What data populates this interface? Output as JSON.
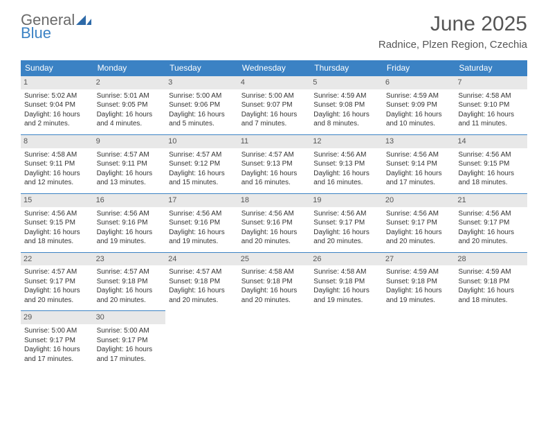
{
  "brand": {
    "general": "General",
    "blue": "Blue"
  },
  "title": "June 2025",
  "location": "Radnice, Plzen Region, Czechia",
  "colors": {
    "header_bg": "#3b82c4",
    "daynum_bg": "#e8e8e8",
    "cell_border": "#3b82c4",
    "text": "#333333",
    "title_text": "#555555"
  },
  "day_names": [
    "Sunday",
    "Monday",
    "Tuesday",
    "Wednesday",
    "Thursday",
    "Friday",
    "Saturday"
  ],
  "weeks": [
    [
      {
        "n": "1",
        "sr": "Sunrise: 5:02 AM",
        "ss": "Sunset: 9:04 PM",
        "dl": "Daylight: 16 hours and 2 minutes."
      },
      {
        "n": "2",
        "sr": "Sunrise: 5:01 AM",
        "ss": "Sunset: 9:05 PM",
        "dl": "Daylight: 16 hours and 4 minutes."
      },
      {
        "n": "3",
        "sr": "Sunrise: 5:00 AM",
        "ss": "Sunset: 9:06 PM",
        "dl": "Daylight: 16 hours and 5 minutes."
      },
      {
        "n": "4",
        "sr": "Sunrise: 5:00 AM",
        "ss": "Sunset: 9:07 PM",
        "dl": "Daylight: 16 hours and 7 minutes."
      },
      {
        "n": "5",
        "sr": "Sunrise: 4:59 AM",
        "ss": "Sunset: 9:08 PM",
        "dl": "Daylight: 16 hours and 8 minutes."
      },
      {
        "n": "6",
        "sr": "Sunrise: 4:59 AM",
        "ss": "Sunset: 9:09 PM",
        "dl": "Daylight: 16 hours and 10 minutes."
      },
      {
        "n": "7",
        "sr": "Sunrise: 4:58 AM",
        "ss": "Sunset: 9:10 PM",
        "dl": "Daylight: 16 hours and 11 minutes."
      }
    ],
    [
      {
        "n": "8",
        "sr": "Sunrise: 4:58 AM",
        "ss": "Sunset: 9:11 PM",
        "dl": "Daylight: 16 hours and 12 minutes."
      },
      {
        "n": "9",
        "sr": "Sunrise: 4:57 AM",
        "ss": "Sunset: 9:11 PM",
        "dl": "Daylight: 16 hours and 13 minutes."
      },
      {
        "n": "10",
        "sr": "Sunrise: 4:57 AM",
        "ss": "Sunset: 9:12 PM",
        "dl": "Daylight: 16 hours and 15 minutes."
      },
      {
        "n": "11",
        "sr": "Sunrise: 4:57 AM",
        "ss": "Sunset: 9:13 PM",
        "dl": "Daylight: 16 hours and 16 minutes."
      },
      {
        "n": "12",
        "sr": "Sunrise: 4:56 AM",
        "ss": "Sunset: 9:13 PM",
        "dl": "Daylight: 16 hours and 16 minutes."
      },
      {
        "n": "13",
        "sr": "Sunrise: 4:56 AM",
        "ss": "Sunset: 9:14 PM",
        "dl": "Daylight: 16 hours and 17 minutes."
      },
      {
        "n": "14",
        "sr": "Sunrise: 4:56 AM",
        "ss": "Sunset: 9:15 PM",
        "dl": "Daylight: 16 hours and 18 minutes."
      }
    ],
    [
      {
        "n": "15",
        "sr": "Sunrise: 4:56 AM",
        "ss": "Sunset: 9:15 PM",
        "dl": "Daylight: 16 hours and 18 minutes."
      },
      {
        "n": "16",
        "sr": "Sunrise: 4:56 AM",
        "ss": "Sunset: 9:16 PM",
        "dl": "Daylight: 16 hours and 19 minutes."
      },
      {
        "n": "17",
        "sr": "Sunrise: 4:56 AM",
        "ss": "Sunset: 9:16 PM",
        "dl": "Daylight: 16 hours and 19 minutes."
      },
      {
        "n": "18",
        "sr": "Sunrise: 4:56 AM",
        "ss": "Sunset: 9:16 PM",
        "dl": "Daylight: 16 hours and 20 minutes."
      },
      {
        "n": "19",
        "sr": "Sunrise: 4:56 AM",
        "ss": "Sunset: 9:17 PM",
        "dl": "Daylight: 16 hours and 20 minutes."
      },
      {
        "n": "20",
        "sr": "Sunrise: 4:56 AM",
        "ss": "Sunset: 9:17 PM",
        "dl": "Daylight: 16 hours and 20 minutes."
      },
      {
        "n": "21",
        "sr": "Sunrise: 4:56 AM",
        "ss": "Sunset: 9:17 PM",
        "dl": "Daylight: 16 hours and 20 minutes."
      }
    ],
    [
      {
        "n": "22",
        "sr": "Sunrise: 4:57 AM",
        "ss": "Sunset: 9:17 PM",
        "dl": "Daylight: 16 hours and 20 minutes."
      },
      {
        "n": "23",
        "sr": "Sunrise: 4:57 AM",
        "ss": "Sunset: 9:18 PM",
        "dl": "Daylight: 16 hours and 20 minutes."
      },
      {
        "n": "24",
        "sr": "Sunrise: 4:57 AM",
        "ss": "Sunset: 9:18 PM",
        "dl": "Daylight: 16 hours and 20 minutes."
      },
      {
        "n": "25",
        "sr": "Sunrise: 4:58 AM",
        "ss": "Sunset: 9:18 PM",
        "dl": "Daylight: 16 hours and 20 minutes."
      },
      {
        "n": "26",
        "sr": "Sunrise: 4:58 AM",
        "ss": "Sunset: 9:18 PM",
        "dl": "Daylight: 16 hours and 19 minutes."
      },
      {
        "n": "27",
        "sr": "Sunrise: 4:59 AM",
        "ss": "Sunset: 9:18 PM",
        "dl": "Daylight: 16 hours and 19 minutes."
      },
      {
        "n": "28",
        "sr": "Sunrise: 4:59 AM",
        "ss": "Sunset: 9:18 PM",
        "dl": "Daylight: 16 hours and 18 minutes."
      }
    ],
    [
      {
        "n": "29",
        "sr": "Sunrise: 5:00 AM",
        "ss": "Sunset: 9:17 PM",
        "dl": "Daylight: 16 hours and 17 minutes."
      },
      {
        "n": "30",
        "sr": "Sunrise: 5:00 AM",
        "ss": "Sunset: 9:17 PM",
        "dl": "Daylight: 16 hours and 17 minutes."
      },
      null,
      null,
      null,
      null,
      null
    ]
  ]
}
